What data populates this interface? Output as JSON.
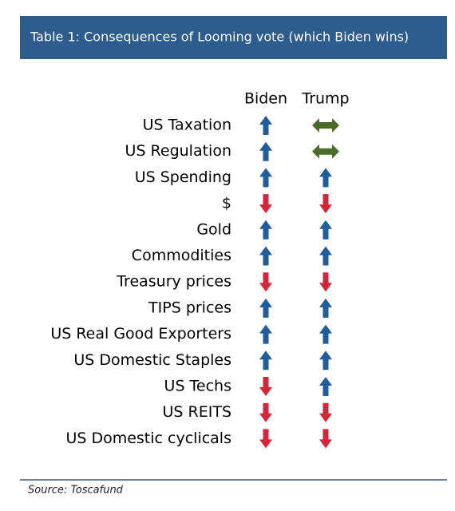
{
  "header": {
    "title": "Table 1: Consequences of Looming vote (which Biden wins)"
  },
  "table": {
    "columns": [
      "Biden",
      "Trump"
    ],
    "rows": [
      {
        "label": "US Taxation",
        "biden": "up",
        "trump": "both"
      },
      {
        "label": "US Regulation",
        "biden": "up",
        "trump": "both"
      },
      {
        "label": "US Spending",
        "biden": "up",
        "trump": "up"
      },
      {
        "label": "$",
        "biden": "down",
        "trump": "down"
      },
      {
        "label": "Gold",
        "biden": "up",
        "trump": "up"
      },
      {
        "label": "Commodities",
        "biden": "up",
        "trump": "up"
      },
      {
        "label": "Treasury prices",
        "biden": "down",
        "trump": "down"
      },
      {
        "label": "TIPS prices",
        "biden": "up",
        "trump": "up"
      },
      {
        "label": "US Real Good Exporters",
        "biden": "up",
        "trump": "up"
      },
      {
        "label": "US Domestic Staples",
        "biden": "up",
        "trump": "up"
      },
      {
        "label": "US Techs",
        "biden": "down",
        "trump": "up"
      },
      {
        "label": "US REITS",
        "biden": "down",
        "trump": "down"
      },
      {
        "label": "US Domestic cyclicals",
        "biden": "down",
        "trump": "down"
      }
    ]
  },
  "footer": {
    "source": "Source: Toscafund"
  }
}
